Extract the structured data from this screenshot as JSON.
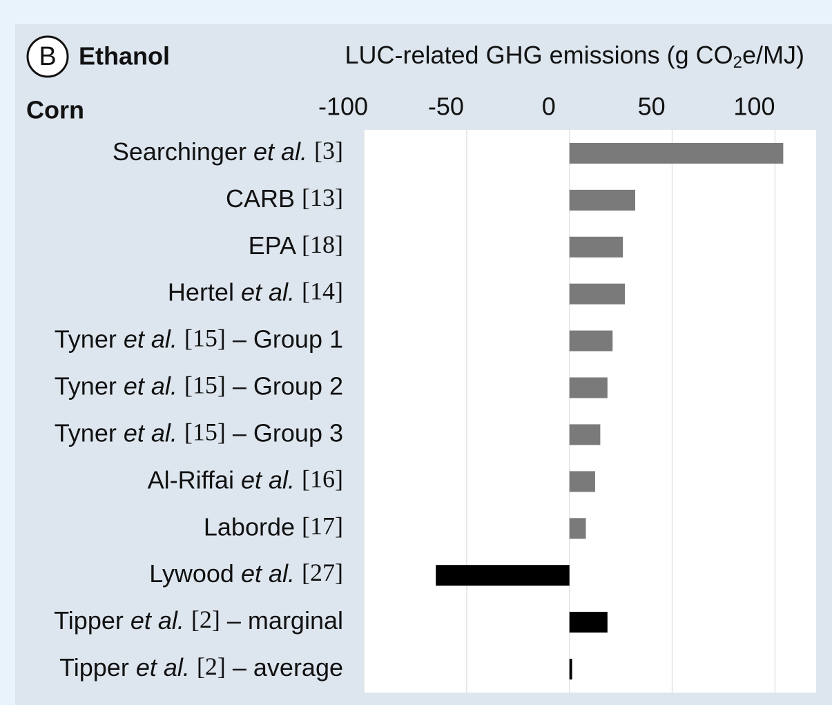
{
  "chart_data": {
    "type": "barh",
    "panel_label": "B",
    "title": "Ethanol",
    "subtitle": "Corn",
    "xlabel": "LUC-related GHG emissions (g CO₂e/MJ)",
    "categories": [
      "Searchinger et al. [3]",
      "CARB [13]",
      "EPA [18]",
      "Hertel et al. [14]",
      "Tyner et al. [15] – Group 1",
      "Tyner et al. [15] – Group 2",
      "Tyner et al. [15] – Group 3",
      "Al-Riffai et al. [16]",
      "Laborde [17]",
      "Lywood et al. [27]",
      "Tipper et al. [2] – marginal",
      "Tipper et al. [2] – average"
    ],
    "values": [
      104,
      32,
      26,
      27,
      21,
      18.5,
      15,
      12.5,
      8,
      -65,
      18.5,
      1.3
    ],
    "colors": [
      "#7a7a7a",
      "#7a7a7a",
      "#7a7a7a",
      "#7a7a7a",
      "#7a7a7a",
      "#7a7a7a",
      "#7a7a7a",
      "#7a7a7a",
      "#7a7a7a",
      "#000000",
      "#000000",
      "#000000"
    ],
    "xlim": [
      -100,
      120
    ],
    "xticks": [
      -100,
      -50,
      0,
      50,
      100
    ],
    "grid": true
  }
}
